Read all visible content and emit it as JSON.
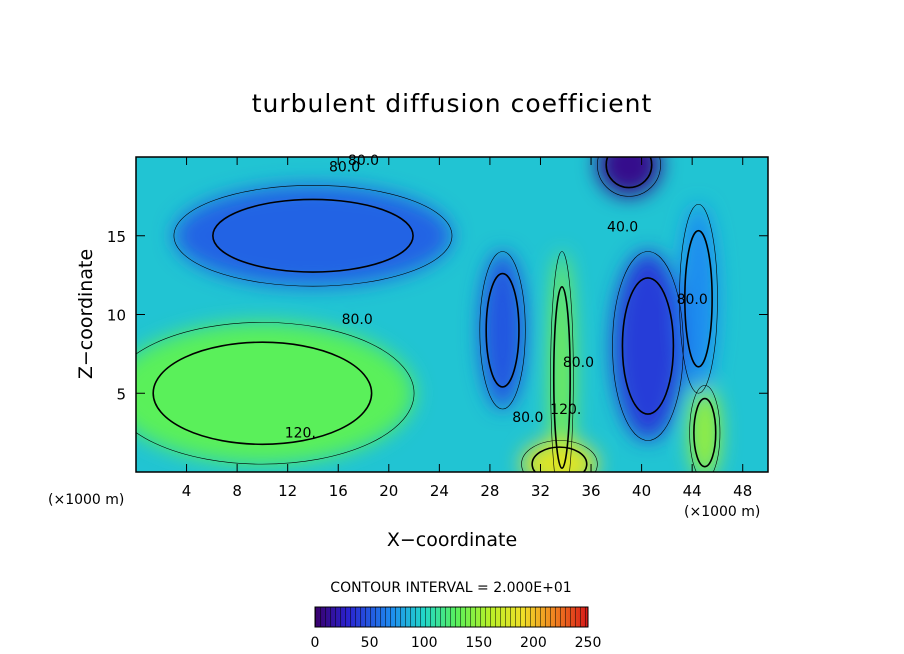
{
  "chart_data": {
    "type": "heatmap",
    "title": "turbulent diffusion coefficient",
    "xlabel": "X−coordinate",
    "ylabel": "Z−coordinate",
    "x_unit_label": "(×1000 m)",
    "z_unit_label": "(×1000 m)",
    "xlim": [
      0,
      50
    ],
    "ylim": [
      0,
      20
    ],
    "x_ticks": [
      4,
      8,
      12,
      16,
      20,
      24,
      28,
      32,
      36,
      40,
      44,
      48
    ],
    "y_ticks": [
      5,
      10,
      15
    ],
    "contour_interval_text": "CONTOUR INTERVAL = 2.000E+01",
    "colorbar": {
      "range": [
        0,
        250
      ],
      "tick_values": [
        0,
        50,
        100,
        150,
        200,
        250
      ],
      "tick_labels": [
        "0",
        "50",
        "100",
        "150",
        "200",
        "250"
      ]
    },
    "contour_labels": [
      {
        "text": "80.0",
        "x": 16.5,
        "y": 19.4
      },
      {
        "text": "80.0",
        "x": 18.0,
        "y": 19.8
      },
      {
        "text": "80.0",
        "x": 17.5,
        "y": 9.7
      },
      {
        "text": "120.",
        "x": 13.0,
        "y": 2.5
      },
      {
        "text": "40.0",
        "x": 38.5,
        "y": 15.6
      },
      {
        "text": "80.0",
        "x": 44.0,
        "y": 11.0
      },
      {
        "text": "80.0",
        "x": 35.0,
        "y": 7.0
      },
      {
        "text": "120.",
        "x": 34.0,
        "y": 4.0
      },
      {
        "text": "80.0",
        "x": 31.0,
        "y": 3.5
      }
    ],
    "features": [
      {
        "shape": "ellipse",
        "cx": 10,
        "cz": 5,
        "rx": 12,
        "rz": 4.5,
        "value": 130
      },
      {
        "shape": "ellipse",
        "cx": 14,
        "cz": 15,
        "rx": 11,
        "rz": 3.2,
        "value": 55
      },
      {
        "shape": "ellipse",
        "cx": 29,
        "cz": 9,
        "rx": 1.8,
        "rz": 5,
        "value": 50
      },
      {
        "shape": "ellipse",
        "cx": 40.5,
        "cz": 8,
        "rx": 2.8,
        "rz": 6,
        "value": 40
      },
      {
        "shape": "ellipse",
        "cx": 39,
        "cz": 19.5,
        "rx": 2.5,
        "rz": 2,
        "value": 10
      },
      {
        "shape": "ellipse",
        "cx": 33.7,
        "cz": 6,
        "rx": 0.9,
        "rz": 8,
        "value": 140
      },
      {
        "shape": "ellipse",
        "cx": 33.5,
        "cz": 0.5,
        "rx": 3,
        "rz": 1.5,
        "value": 180
      },
      {
        "shape": "ellipse",
        "cx": 45,
        "cz": 2.5,
        "rx": 1.2,
        "rz": 3,
        "value": 150
      },
      {
        "shape": "ellipse",
        "cx": 44.5,
        "cz": 11,
        "rx": 1.5,
        "rz": 6,
        "value": 70
      }
    ]
  }
}
